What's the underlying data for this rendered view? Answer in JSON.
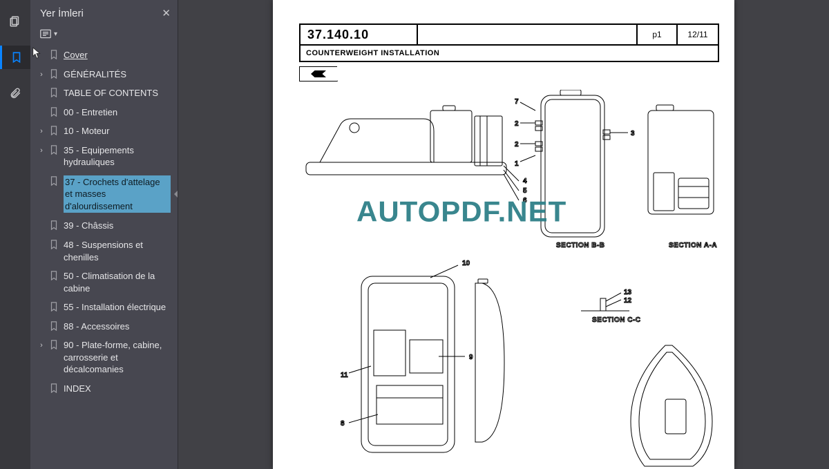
{
  "rail": {
    "icons": [
      "pages-icon",
      "bookmark-icon",
      "attachment-icon"
    ],
    "active_index": 1
  },
  "bookmarks": {
    "title": "Yer İmleri",
    "items": [
      {
        "label": "Cover",
        "expandable": false,
        "underline": true,
        "selected": false
      },
      {
        "label": "GÉNÉRALITÉS",
        "expandable": true,
        "underline": false,
        "selected": false
      },
      {
        "label": "TABLE OF CONTENTS",
        "expandable": false,
        "underline": false,
        "selected": false
      },
      {
        "label": "00 - Entretien",
        "expandable": false,
        "underline": false,
        "selected": false
      },
      {
        "label": "10 - Moteur",
        "expandable": true,
        "underline": false,
        "selected": false
      },
      {
        "label": "35 - Equipements hydrauliques",
        "expandable": true,
        "underline": false,
        "selected": false
      },
      {
        "label": "37 - Crochets d'attelage et masses d'alourdissement",
        "expandable": false,
        "underline": false,
        "selected": true
      },
      {
        "label": "39 - Châssis",
        "expandable": false,
        "underline": false,
        "selected": false
      },
      {
        "label": "48 - Suspensions et chenilles",
        "expandable": false,
        "underline": false,
        "selected": false
      },
      {
        "label": "50 - Climatisation de la cabine",
        "expandable": false,
        "underline": false,
        "selected": false
      },
      {
        "label": "55 - Installation électrique",
        "expandable": false,
        "underline": false,
        "selected": false
      },
      {
        "label": "88 - Accessoires",
        "expandable": false,
        "underline": false,
        "selected": false
      },
      {
        "label": "90 - Plate-forme, cabine, carrosserie et décalcomanies",
        "expandable": true,
        "underline": false,
        "selected": false
      },
      {
        "label": "INDEX",
        "expandable": false,
        "underline": false,
        "selected": false
      }
    ]
  },
  "page": {
    "code": "37.140.10",
    "page_no": "p1",
    "date": "12/11",
    "subtitle": "COUNTERWEIGHT INSTALLATION",
    "watermark": "AUTOPDF.NET",
    "section_bb": "SECTION B-B",
    "section_aa": "SECTION A-A",
    "section_cc": "SECTION C-C",
    "callouts": {
      "n1": "1",
      "n2": "2",
      "n3": "3",
      "n4": "4",
      "n5": "5",
      "n6": "6",
      "n7": "7",
      "n8": "8",
      "n9": "9",
      "n10": "10",
      "n11": "11",
      "n12": "12",
      "n13": "13"
    }
  },
  "colors": {
    "rail_bg": "#38383d",
    "panel_bg": "#474750",
    "viewer_bg": "#414146",
    "accent": "#0a84ff",
    "selection": "#5aa2c7",
    "watermark": "#2f8088"
  }
}
